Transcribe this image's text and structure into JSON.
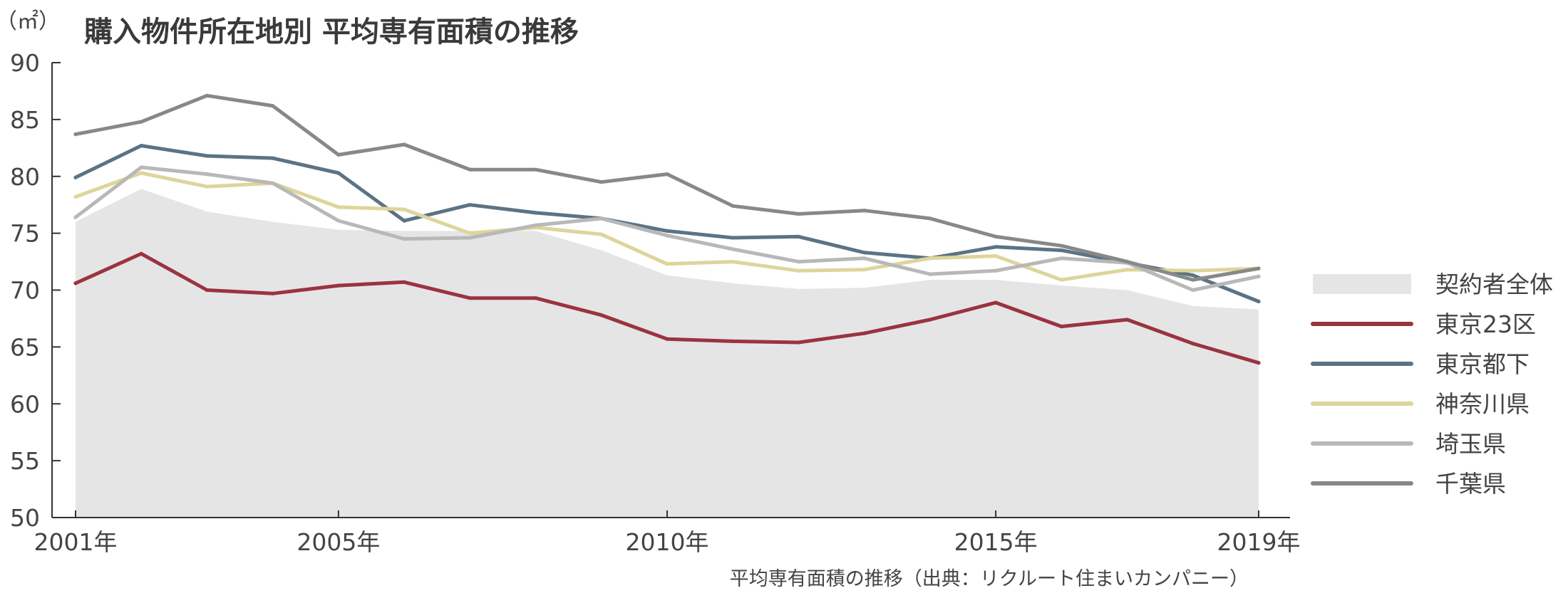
{
  "chart_data": {
    "type": "line",
    "title": "購入物件所在地別 平均専有面積の推移",
    "unit_label": "（㎡）",
    "source_note": "平均専有面積の推移（出典：リクルート住まいカンパニー）",
    "x": [
      2001,
      2002,
      2003,
      2004,
      2005,
      2006,
      2007,
      2008,
      2009,
      2010,
      2011,
      2012,
      2013,
      2014,
      2015,
      2016,
      2017,
      2018,
      2019
    ],
    "x_tick_labels": [
      {
        "x": 2001,
        "label": "2001年"
      },
      {
        "x": 2005,
        "label": "2005年"
      },
      {
        "x": 2010,
        "label": "2010年"
      },
      {
        "x": 2015,
        "label": "2015年"
      },
      {
        "x": 2019,
        "label": "2019年"
      }
    ],
    "ylim": [
      50,
      90
    ],
    "y_ticks": [
      50,
      55,
      60,
      65,
      70,
      75,
      80,
      85,
      90
    ],
    "grid": false,
    "legend_position": "right",
    "series": [
      {
        "name": "契約者全体",
        "kind": "area",
        "color": "#e5e5e6",
        "values": [
          76.0,
          78.9,
          76.9,
          76.0,
          75.3,
          75.2,
          75.2,
          75.2,
          73.5,
          71.3,
          70.6,
          70.1,
          70.2,
          70.9,
          70.9,
          70.4,
          70.0,
          68.6,
          68.3
        ]
      },
      {
        "name": "東京23区",
        "kind": "line",
        "color": "#9b3340",
        "values": [
          70.6,
          73.2,
          70.0,
          69.7,
          70.4,
          70.7,
          69.3,
          69.3,
          67.8,
          65.7,
          65.5,
          65.4,
          66.2,
          67.4,
          68.9,
          66.8,
          67.4,
          65.3,
          63.6
        ]
      },
      {
        "name": "東京都下",
        "kind": "line",
        "color": "#5b7385",
        "values": [
          79.9,
          82.7,
          81.8,
          81.6,
          80.3,
          76.1,
          77.5,
          76.8,
          76.3,
          75.2,
          74.6,
          74.7,
          73.3,
          72.8,
          73.8,
          73.5,
          72.4,
          71.3,
          69.0
        ]
      },
      {
        "name": "神奈川県",
        "kind": "line",
        "color": "#ddd59a",
        "values": [
          78.2,
          80.3,
          79.1,
          79.4,
          77.3,
          77.1,
          75.0,
          75.5,
          74.9,
          72.3,
          72.5,
          71.7,
          71.8,
          72.8,
          73.0,
          70.9,
          71.8,
          71.7,
          71.9
        ]
      },
      {
        "name": "埼玉県",
        "kind": "line",
        "color": "#b8b8b8",
        "values": [
          76.4,
          80.8,
          80.2,
          79.4,
          76.1,
          74.5,
          74.6,
          75.7,
          76.3,
          74.8,
          73.6,
          72.5,
          72.8,
          71.4,
          71.7,
          72.8,
          72.4,
          70.0,
          71.2
        ]
      },
      {
        "name": "千葉県",
        "kind": "line",
        "color": "#888888",
        "values": [
          83.7,
          84.8,
          87.1,
          86.2,
          81.9,
          82.8,
          80.6,
          80.6,
          79.5,
          80.2,
          77.4,
          76.7,
          77.0,
          76.3,
          74.7,
          73.9,
          72.5,
          70.9,
          71.9
        ]
      }
    ]
  }
}
